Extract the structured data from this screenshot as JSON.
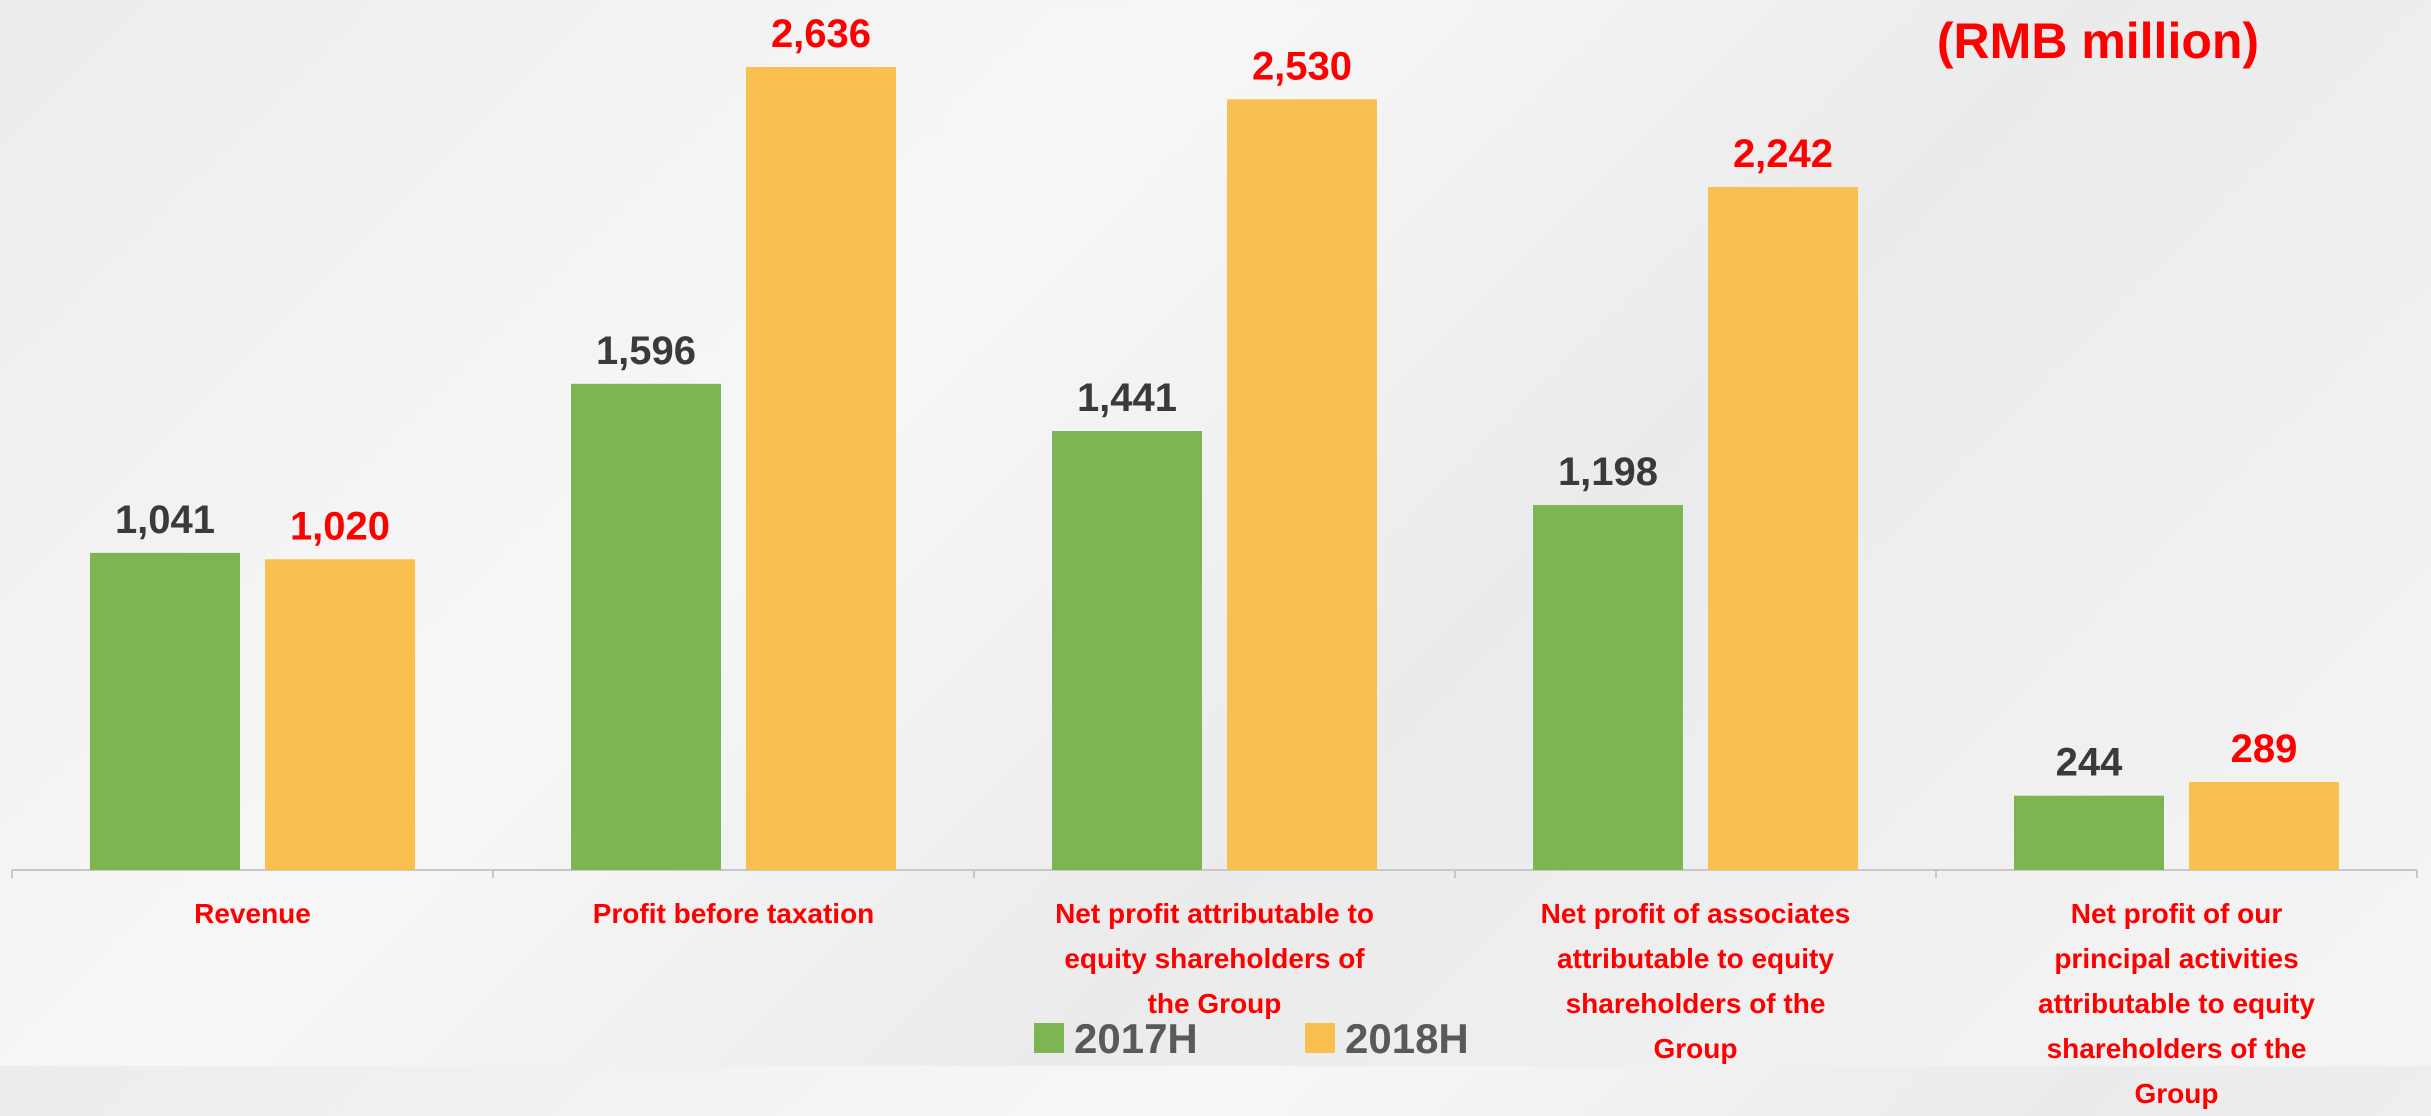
{
  "chart_data": {
    "type": "bar",
    "annotation": "(RMB million)",
    "categories": [
      "Revenue",
      "Profit before taxation",
      "Net profit attributable to equity shareholders of the Group",
      "Net profit of associates attributable to equity shareholders of the Group",
      "Net profit of our principal activities attributable to equity shareholders of the Group"
    ],
    "series": [
      {
        "name": "2017H",
        "color": "#7db553",
        "label_color": "#3a3a3a",
        "values": [
          1041,
          1596,
          1441,
          1198,
          244
        ],
        "value_labels": [
          "1,041",
          "1,596",
          "1,441",
          "1,198",
          "244"
        ]
      },
      {
        "name": "2018H",
        "color": "#f9c04f",
        "label_color": "#ff0000",
        "values": [
          1020,
          2636,
          2530,
          2242,
          289
        ],
        "value_labels": [
          "1,020",
          "2,636",
          "2,530",
          "2,242",
          "289"
        ]
      }
    ]
  }
}
